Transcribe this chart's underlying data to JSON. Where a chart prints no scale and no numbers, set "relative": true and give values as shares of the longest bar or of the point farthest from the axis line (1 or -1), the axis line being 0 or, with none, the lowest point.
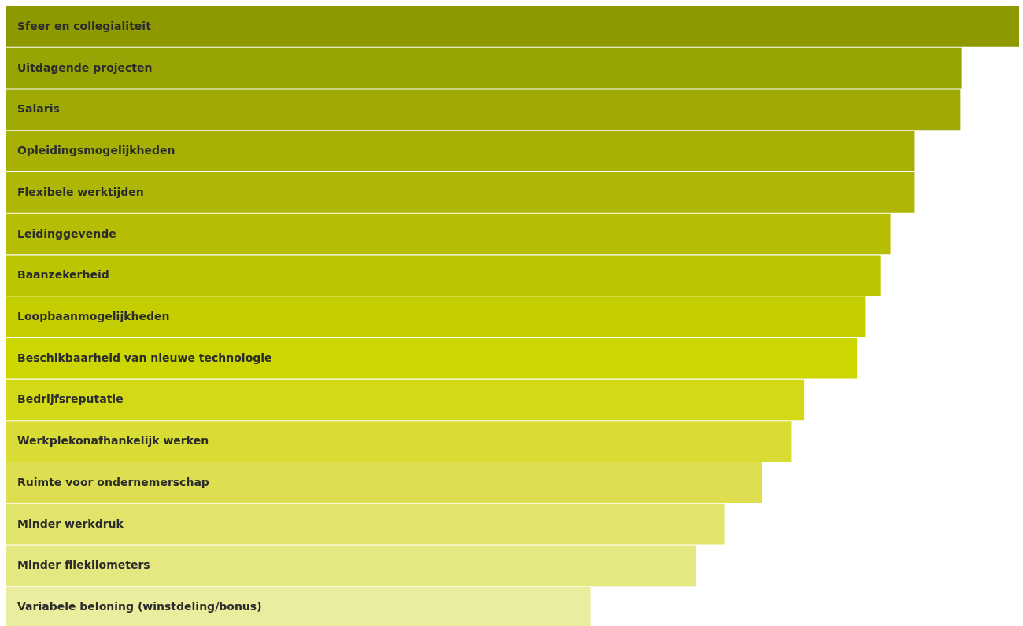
{
  "chart_data": {
    "type": "bar",
    "orientation": "horizontal",
    "relative": true,
    "categories": [
      "Sfeer en collegialiteit",
      "Uitdagende projecten",
      "Salaris",
      "Opleidingsmogelijkheden",
      "Flexibele werktijden",
      "Leidinggevende",
      "Baanzekerheid",
      "Loopbaanmogelijkheden",
      "Beschikbaarheid van nieuwe technologie",
      "Bedrijfsreputatie",
      "Werkplekonafhankelijk werken",
      "Ruimte voor ondernemerschap",
      "Minder werkdruk",
      "Minder filekilometers",
      "Variabele beloning (winstdeling/bonus)"
    ],
    "values": [
      1.0,
      0.943,
      0.942,
      0.897,
      0.897,
      0.873,
      0.863,
      0.848,
      0.84,
      0.788,
      0.775,
      0.746,
      0.709,
      0.681,
      0.577
    ],
    "colors": [
      "#8e9900",
      "#98a404",
      "#a0aa06",
      "#a6b005",
      "#adb704",
      "#b5be04",
      "#bcc502",
      "#c4cd00",
      "#ccd600",
      "#d3d917",
      "#d8dc34",
      "#dddf50",
      "#e1e46b",
      "#e5e881",
      "#eaec9e"
    ]
  }
}
